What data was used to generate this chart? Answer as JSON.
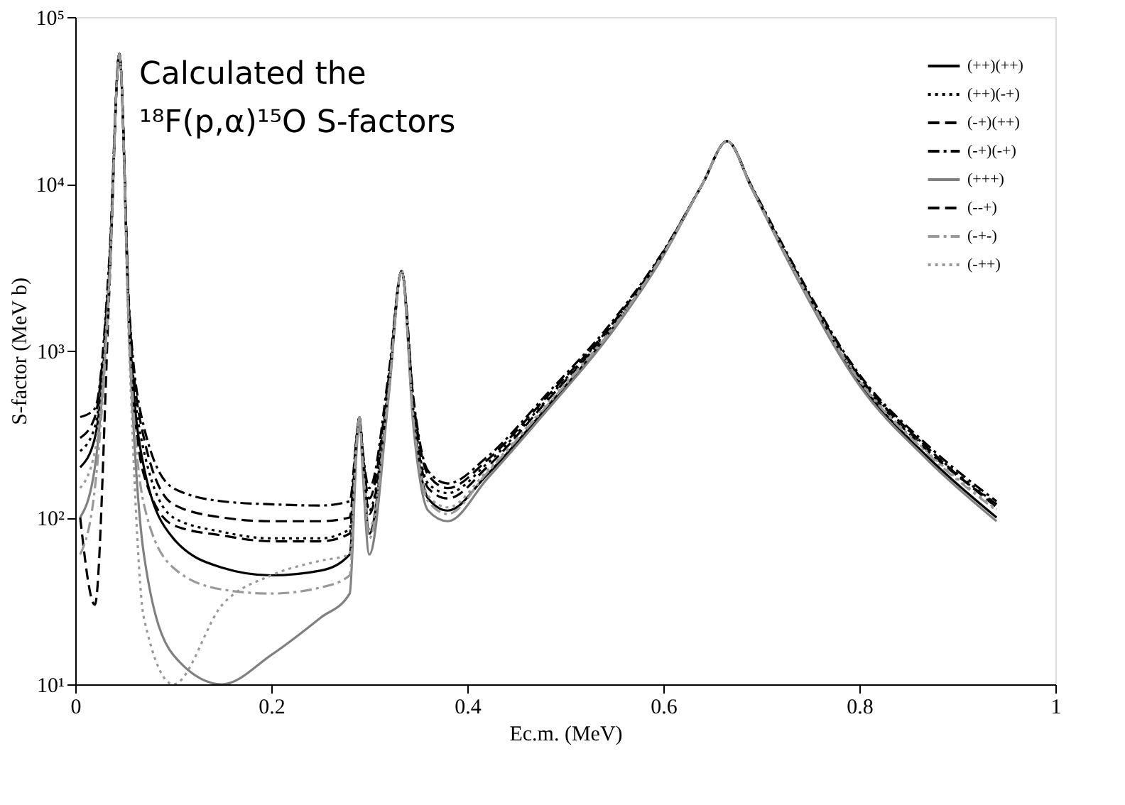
{
  "chart_data": {
    "type": "line",
    "xlabel": "Ec.m. (MeV)",
    "ylabel": "S-factor (MeV b)",
    "log": "y",
    "grid": false,
    "legend": "top right",
    "marker": "none",
    "annotations": [
      "Calculated the",
      "¹⁸F(p,α)¹⁵O S-factors"
    ],
    "xlim": [
      0,
      1
    ],
    "xticks": [
      0,
      0.2,
      0.4,
      0.6,
      0.8,
      1
    ],
    "ylim": [
      10,
      100000
    ],
    "yticks": [
      {
        "value": 10,
        "label": "10¹"
      },
      {
        "value": 100,
        "label": "10²"
      },
      {
        "value": 1000,
        "label": "10³"
      },
      {
        "value": 10000,
        "label": "10⁴"
      },
      {
        "value": 100000,
        "label": "10⁵"
      }
    ],
    "x": [
      0.005,
      0.02,
      0.035,
      0.045,
      0.055,
      0.07,
      0.1,
      0.15,
      0.2,
      0.25,
      0.28,
      0.287,
      0.29,
      0.293,
      0.3,
      0.32,
      0.333,
      0.345,
      0.36,
      0.38,
      0.42,
      0.48,
      0.55,
      0.6,
      0.64,
      0.665,
      0.69,
      0.73,
      0.8,
      0.87,
      0.94
    ],
    "series": [
      {
        "name": "(++)(++)",
        "color": "#000000",
        "line_style": "solid",
        "values": [
          200,
          300,
          3000,
          60000,
          1500,
          200,
          75,
          50,
          45,
          48,
          60,
          300,
          400,
          250,
          80,
          600,
          3000,
          400,
          130,
          110,
          180,
          450,
          1400,
          3800,
          10000,
          18000,
          9500,
          3300,
          650,
          230,
          100
        ]
      },
      {
        "name": "(++)(-+)",
        "color": "#000000",
        "line_style": "dotted",
        "values": [
          250,
          350,
          3200,
          60000,
          1600,
          250,
          100,
          82,
          75,
          75,
          85,
          300,
          400,
          250,
          110,
          650,
          3000,
          450,
          160,
          140,
          210,
          500,
          1500,
          3900,
          10000,
          18000,
          9600,
          3400,
          700,
          260,
          120
        ]
      },
      {
        "name": "(-+)(++)",
        "color": "#000000",
        "line_style": "dashed",
        "values": [
          300,
          400,
          3500,
          60000,
          1700,
          300,
          120,
          100,
          95,
          95,
          100,
          300,
          400,
          250,
          130,
          700,
          3000,
          500,
          180,
          150,
          220,
          520,
          1500,
          3900,
          10000,
          18000,
          9600,
          3400,
          700,
          260,
          115
        ]
      },
      {
        "name": "(-+)(-+)",
        "color": "#000000",
        "line_style": "dashdot",
        "values": [
          400,
          450,
          3800,
          60000,
          1800,
          350,
          150,
          125,
          120,
          118,
          125,
          300,
          400,
          260,
          150,
          750,
          3000,
          520,
          190,
          160,
          230,
          540,
          1550,
          3950,
          10000,
          18000,
          9700,
          3500,
          720,
          270,
          125
        ]
      },
      {
        "name": "(+++)",
        "color": "#808080",
        "line_style": "solid",
        "values": [
          100,
          200,
          2800,
          60000,
          1200,
          60,
          15,
          10,
          15,
          25,
          35,
          250,
          400,
          200,
          60,
          550,
          3000,
          350,
          110,
          95,
          170,
          430,
          1350,
          3700,
          10000,
          18000,
          9400,
          3200,
          620,
          220,
          95
        ]
      },
      {
        "name": "(--+)",
        "color": "#000000",
        "line_style": "dashed",
        "values": [
          100,
          30,
          2500,
          60000,
          1400,
          180,
          90,
          78,
          72,
          72,
          80,
          300,
          400,
          250,
          105,
          620,
          3000,
          440,
          150,
          130,
          200,
          490,
          1450,
          3850,
          10000,
          18000,
          9500,
          3350,
          680,
          250,
          120
        ]
      },
      {
        "name": "(-+-)",
        "color": "#999999",
        "line_style": "dashdot",
        "values": [
          60,
          150,
          2600,
          60000,
          1300,
          120,
          50,
          37,
          35,
          38,
          45,
          280,
          400,
          220,
          75,
          580,
          3000,
          380,
          125,
          105,
          185,
          460,
          1400,
          3800,
          10000,
          18000,
          9500,
          3300,
          660,
          240,
          110
        ]
      },
      {
        "name": "(-++)",
        "color": "#999999",
        "line_style": "dotted",
        "values": [
          150,
          250,
          3000,
          60000,
          1000,
          25,
          10,
          30,
          45,
          55,
          60,
          290,
          400,
          230,
          85,
          600,
          3000,
          400,
          135,
          115,
          190,
          470,
          1420,
          3820,
          10000,
          18000,
          9500,
          3300,
          670,
          245,
          112
        ]
      }
    ]
  }
}
